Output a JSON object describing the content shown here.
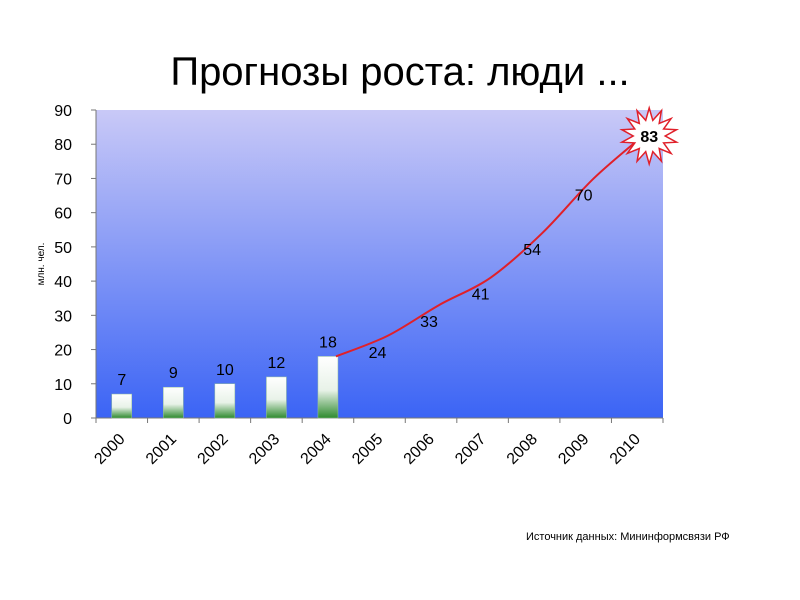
{
  "title": "Прогнозы роста: люди ...",
  "source": "Источник данных: Мининформсвязи РФ",
  "colors": {
    "plot_top": "#c9c9f7",
    "plot_bottom": "#3b64f5",
    "line": "#e0202a",
    "bar_top": "#ffffff",
    "bar_bottom": "#2f8a2f",
    "burst_stroke": "#e0202a"
  },
  "chart_data": {
    "type": "bar",
    "ylabel": "млн. чел.",
    "ylim": [
      0,
      90
    ],
    "yticks": [
      0,
      10,
      20,
      30,
      40,
      50,
      60,
      70,
      80,
      90
    ],
    "categories": [
      "2000",
      "2001",
      "2002",
      "2003",
      "2004",
      "2005",
      "2006",
      "2007",
      "2008",
      "2009",
      "2010"
    ],
    "bars": [
      {
        "x": "2000",
        "value": 7,
        "label": "7"
      },
      {
        "x": "2001",
        "value": 9,
        "label": "9"
      },
      {
        "x": "2002",
        "value": 10,
        "label": "10"
      },
      {
        "x": "2003",
        "value": 12,
        "label": "12"
      },
      {
        "x": "2004",
        "value": 18,
        "label": "18"
      }
    ],
    "forecast_line": [
      {
        "x": "2004",
        "value": 18
      },
      {
        "x": "2005",
        "value": 24,
        "label": "24"
      },
      {
        "x": "2006",
        "value": 33,
        "label": "33"
      },
      {
        "x": "2007",
        "value": 41,
        "label": "41"
      },
      {
        "x": "2008",
        "value": 54,
        "label": "54"
      },
      {
        "x": "2009",
        "value": 70,
        "label": "70"
      },
      {
        "x": "2010",
        "value": 83,
        "label": "83"
      }
    ],
    "highlight": "83",
    "grid": false,
    "legend": "none"
  }
}
